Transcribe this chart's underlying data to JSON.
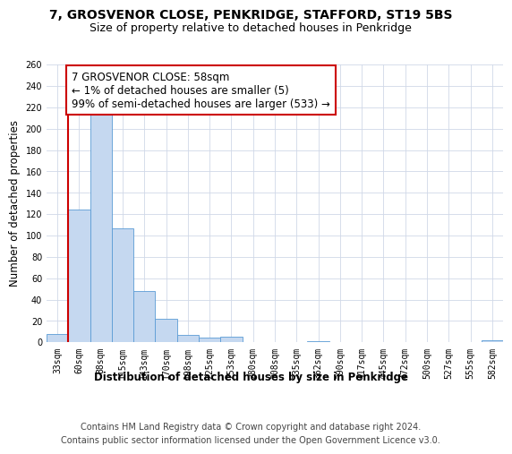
{
  "title": "7, GROSVENOR CLOSE, PENKRIDGE, STAFFORD, ST19 5BS",
  "subtitle": "Size of property relative to detached houses in Penkridge",
  "xlabel": "Distribution of detached houses by size in Penkridge",
  "ylabel": "Number of detached properties",
  "bin_labels": [
    "33sqm",
    "60sqm",
    "88sqm",
    "115sqm",
    "143sqm",
    "170sqm",
    "198sqm",
    "225sqm",
    "253sqm",
    "280sqm",
    "308sqm",
    "335sqm",
    "362sqm",
    "390sqm",
    "417sqm",
    "445sqm",
    "472sqm",
    "500sqm",
    "527sqm",
    "555sqm",
    "582sqm"
  ],
  "bar_heights": [
    8,
    124,
    218,
    107,
    48,
    22,
    7,
    4,
    5,
    0,
    0,
    0,
    1,
    0,
    0,
    0,
    0,
    0,
    0,
    0,
    2
  ],
  "bar_color": "#c5d8f0",
  "bar_edge_color": "#5b9bd5",
  "red_line_bin_index": 1,
  "annotation_line1": "7 GROSVENOR CLOSE: 58sqm",
  "annotation_line2": "← 1% of detached houses are smaller (5)",
  "annotation_line3": "99% of semi-detached houses are larger (533) →",
  "annotation_box_edge": "#cc0000",
  "ylim": [
    0,
    260
  ],
  "yticks": [
    0,
    20,
    40,
    60,
    80,
    100,
    120,
    140,
    160,
    180,
    200,
    220,
    240,
    260
  ],
  "footer_line1": "Contains HM Land Registry data © Crown copyright and database right 2024.",
  "footer_line2": "Contains public sector information licensed under the Open Government Licence v3.0.",
  "bg_color": "#ffffff",
  "grid_color": "#d0d8e8",
  "title_fontsize": 10,
  "subtitle_fontsize": 9,
  "axis_label_fontsize": 8.5,
  "tick_fontsize": 7,
  "footer_fontsize": 7,
  "annotation_fontsize": 8.5
}
